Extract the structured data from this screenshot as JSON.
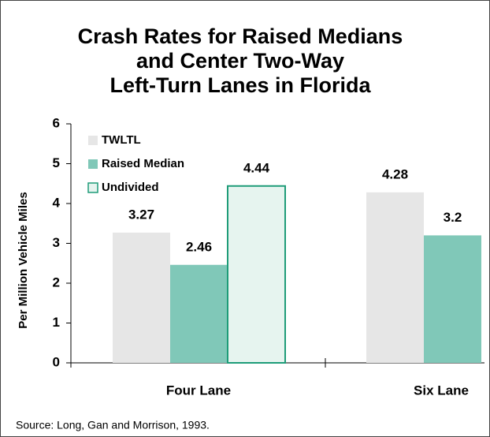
{
  "chart_data": {
    "type": "bar",
    "title": [
      "Crash Rates for Raised Medians",
      "and Center Two-Way",
      "Left-Turn Lanes in Florida"
    ],
    "ylabel": "Per Million Vehicle Miles",
    "categories": [
      "Four Lane",
      "Six Lane"
    ],
    "series": [
      {
        "name": "TWLTL",
        "color": "#e6e6e6",
        "values": [
          3.27,
          4.28
        ]
      },
      {
        "name": "Raised Median",
        "color": "#80c8b8",
        "values": [
          2.46,
          3.2
        ]
      },
      {
        "name": "Undivided",
        "color": "#e6f4ef",
        "edgecolor": "#1e9c78",
        "values": [
          4.44,
          null
        ]
      }
    ],
    "ylim": [
      0,
      6
    ],
    "yticks": [
      0,
      1,
      2,
      3,
      4,
      5,
      6
    ],
    "legend": "upper left",
    "source": "Source: Long, Gan and Morrison, 1993."
  }
}
